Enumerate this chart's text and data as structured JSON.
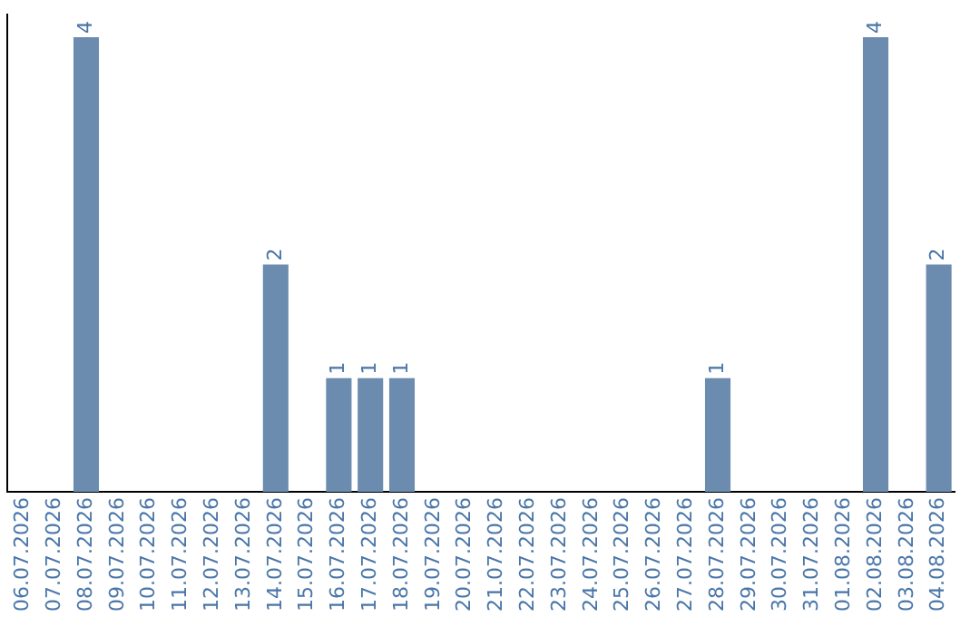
{
  "chart_data": {
    "type": "bar",
    "categories": [
      "06.07.2026",
      "07.07.2026",
      "08.07.2026",
      "09.07.2026",
      "10.07.2026",
      "11.07.2026",
      "12.07.2026",
      "13.07.2026",
      "14.07.2026",
      "15.07.2026",
      "16.07.2026",
      "17.07.2026",
      "18.07.2026",
      "19.07.2026",
      "20.07.2026",
      "21.07.2026",
      "22.07.2026",
      "23.07.2026",
      "24.07.2026",
      "25.07.2026",
      "26.07.2026",
      "27.07.2026",
      "28.07.2026",
      "29.07.2026",
      "30.07.2026",
      "31.07.2026",
      "01.08.2026",
      "02.08.2026",
      "03.08.2026",
      "04.08.2026"
    ],
    "values": [
      0,
      0,
      4,
      0,
      0,
      0,
      0,
      0,
      2,
      0,
      1,
      1,
      1,
      0,
      0,
      0,
      0,
      0,
      0,
      0,
      0,
      0,
      1,
      0,
      0,
      0,
      0,
      4,
      0,
      2
    ],
    "value_labels": [
      null,
      null,
      "4",
      null,
      null,
      null,
      null,
      null,
      "2",
      null,
      "1",
      "1",
      "1",
      null,
      null,
      null,
      null,
      null,
      null,
      null,
      null,
      null,
      "1",
      null,
      null,
      null,
      null,
      "4",
      null,
      "2"
    ],
    "color": "#6b8cae",
    "ylim": [
      0,
      4.2
    ],
    "tick_labels": "x",
    "grid": false,
    "legend": false
  }
}
